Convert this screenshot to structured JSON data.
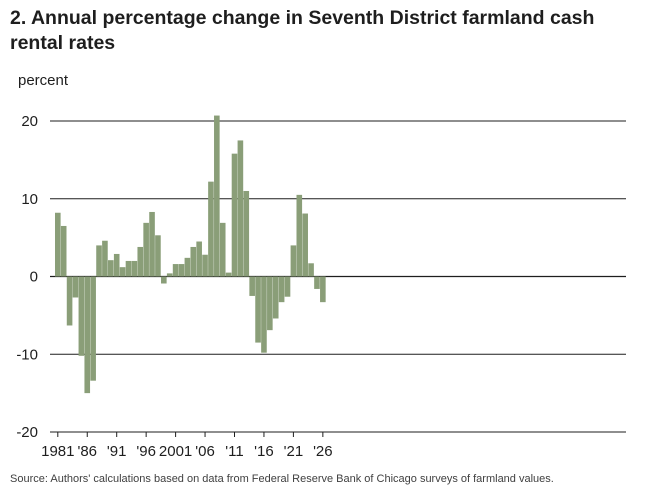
{
  "title": "2. Annual percentage change in Seventh District farmland cash rental rates",
  "source": "Source: Authors' calculations based on data from Federal Reserve Bank of Chicago surveys of farmland values.",
  "chart_data": {
    "type": "bar",
    "ylabel": "percent",
    "xlabel": "",
    "ylim": [
      -20,
      20
    ],
    "yticks": [
      20,
      10,
      0,
      -10,
      -20
    ],
    "xtick_labels": [
      {
        "year": 1981,
        "label": "1981"
      },
      {
        "year": 1986,
        "label": "'86"
      },
      {
        "year": 1991,
        "label": "'91"
      },
      {
        "year": 1996,
        "label": "'96"
      },
      {
        "year": 2001,
        "label": "2001"
      },
      {
        "year": 2006,
        "label": "'06"
      },
      {
        "year": 2011,
        "label": "'11"
      },
      {
        "year": 2016,
        "label": "'16"
      },
      {
        "year": 2021,
        "label": "'21"
      },
      {
        "year": 2026,
        "label": "'26"
      }
    ],
    "bar_color": "#8a9e78",
    "grid": true,
    "categories": [
      1981,
      1982,
      1983,
      1984,
      1985,
      1986,
      1987,
      1988,
      1989,
      1990,
      1991,
      1992,
      1993,
      1994,
      1995,
      1996,
      1997,
      1998,
      1999,
      2000,
      2001,
      2002,
      2003,
      2004,
      2005,
      2006,
      2007,
      2008,
      2009,
      2010,
      2011,
      2012,
      2013,
      2014,
      2015,
      2016,
      2017,
      2018,
      2019,
      2020,
      2021,
      2022,
      2023,
      2024,
      2025,
      2026
    ],
    "values": [
      8.2,
      6.5,
      -6.3,
      -2.7,
      -10.2,
      -15,
      -13.4,
      4.0,
      4.6,
      2.1,
      2.9,
      1.2,
      2.0,
      2.0,
      3.8,
      6.9,
      8.3,
      5.3,
      -0.9,
      0.4,
      1.6,
      1.6,
      2.4,
      3.8,
      4.5,
      2.8,
      12.2,
      20.7,
      6.9,
      0.5,
      15.8,
      17.5,
      11.0,
      -2.5,
      -8.5,
      -9.8,
      -6.9,
      -5.4,
      -3.3,
      -2.6,
      4.0,
      10.5,
      8.1,
      1.7,
      -1.6,
      -3.3
    ]
  }
}
